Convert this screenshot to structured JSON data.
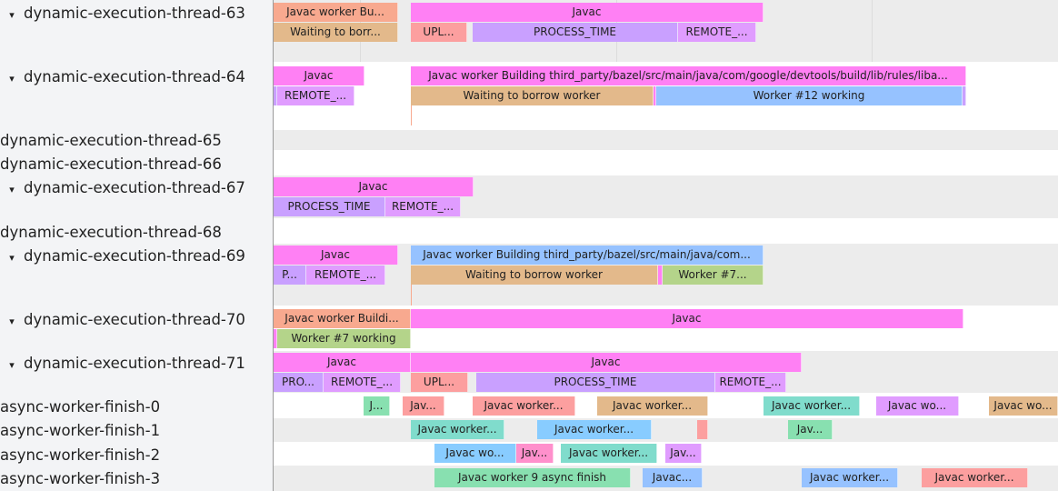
{
  "colors": {
    "magenta": "#ff80f4",
    "salmon": "#f8a98f",
    "tan": "#e3b98b",
    "pink": "#fc9f9f",
    "lavender": "#c9a0ff",
    "violet": "#e09cff",
    "blue": "#96c2ff",
    "lightblue": "#88ccff",
    "green": "#b4d48a",
    "teal": "#80dccc",
    "mint": "#88e0b0",
    "hotpink": "#ff90cc",
    "track_alt": "#ececec"
  },
  "tracks": [
    {
      "name": "dynamic-execution-thread-63",
      "expanded": true,
      "slices": [
        {
          "label": "Javac worker Bu...",
          "color": "salmon"
        },
        {
          "label": "Javac",
          "color": "magenta"
        },
        {
          "label": "Waiting to borr...",
          "color": "tan"
        },
        {
          "label": "UPL...",
          "color": "pink"
        },
        {
          "label": "PROCESS_TIME",
          "color": "lavender"
        },
        {
          "label": "REMOTE_...",
          "color": "violet"
        }
      ]
    },
    {
      "name": "dynamic-execution-thread-64",
      "expanded": true,
      "slices": [
        {
          "label": "Javac",
          "color": "magenta"
        },
        {
          "label": "Javac worker Building third_party/bazel/src/main/java/com/google/devtools/build/lib/rules/liba...",
          "color": "magenta"
        },
        {
          "label": "",
          "color": "lavender"
        },
        {
          "label": "REMOTE_...",
          "color": "violet"
        },
        {
          "label": "Waiting to borrow worker",
          "color": "tan"
        },
        {
          "label": "",
          "color": "magenta"
        },
        {
          "label": "Worker #12 working",
          "color": "blue"
        },
        {
          "label": "",
          "color": "lavender"
        }
      ]
    },
    {
      "name": "dynamic-execution-thread-65",
      "expanded": false,
      "slices": []
    },
    {
      "name": "dynamic-execution-thread-66",
      "expanded": false,
      "slices": []
    },
    {
      "name": "dynamic-execution-thread-67",
      "expanded": true,
      "slices": [
        {
          "label": "Javac",
          "color": "magenta"
        },
        {
          "label": "PROCESS_TIME",
          "color": "lavender"
        },
        {
          "label": "REMOTE_...",
          "color": "violet"
        }
      ]
    },
    {
      "name": "dynamic-execution-thread-68",
      "expanded": false,
      "slices": []
    },
    {
      "name": "dynamic-execution-thread-69",
      "expanded": true,
      "slices": [
        {
          "label": "Javac",
          "color": "magenta"
        },
        {
          "label": "Javac worker Building third_party/bazel/src/main/java/com...",
          "color": "blue"
        },
        {
          "label": "P...",
          "color": "lavender"
        },
        {
          "label": "REMOTE_...",
          "color": "violet"
        },
        {
          "label": "Waiting to borrow worker",
          "color": "tan"
        },
        {
          "label": "",
          "color": "magenta"
        },
        {
          "label": "Worker #7...",
          "color": "green"
        }
      ]
    },
    {
      "name": "dynamic-execution-thread-70",
      "expanded": true,
      "slices": [
        {
          "label": "Javac worker Buildi...",
          "color": "salmon"
        },
        {
          "label": "Javac",
          "color": "magenta"
        },
        {
          "label": "",
          "color": "magenta"
        },
        {
          "label": "Worker #7 working",
          "color": "green"
        }
      ]
    },
    {
      "name": "dynamic-execution-thread-71",
      "expanded": true,
      "slices": [
        {
          "label": "Javac",
          "color": "magenta"
        },
        {
          "label": "Javac",
          "color": "magenta"
        },
        {
          "label": "PRO...",
          "color": "lavender"
        },
        {
          "label": "REMOTE_...",
          "color": "violet"
        },
        {
          "label": "UPL...",
          "color": "pink"
        },
        {
          "label": "PROCESS_TIME",
          "color": "lavender"
        },
        {
          "label": "REMOTE_...",
          "color": "violet"
        }
      ]
    },
    {
      "name": "async-worker-finish-0",
      "expanded": false,
      "slices": [
        {
          "label": "J...",
          "color": "mint"
        },
        {
          "label": "Jav...",
          "color": "pink"
        },
        {
          "label": "Javac worker...",
          "color": "pink"
        },
        {
          "label": "Javac worker...",
          "color": "tan"
        },
        {
          "label": "Javac worker...",
          "color": "teal"
        },
        {
          "label": "Javac wo...",
          "color": "violet"
        },
        {
          "label": "Javac wo...",
          "color": "tan"
        }
      ]
    },
    {
      "name": "async-worker-finish-1",
      "expanded": false,
      "slices": [
        {
          "label": "Javac worker...",
          "color": "teal"
        },
        {
          "label": "Javac worker...",
          "color": "lightblue"
        },
        {
          "label": "",
          "color": "pink"
        },
        {
          "label": "Jav...",
          "color": "mint"
        }
      ]
    },
    {
      "name": "async-worker-finish-2",
      "expanded": false,
      "slices": [
        {
          "label": "Javac wo...",
          "color": "lightblue"
        },
        {
          "label": "Jav...",
          "color": "hotpink"
        },
        {
          "label": "Javac worker...",
          "color": "teal"
        },
        {
          "label": "Jav...",
          "color": "violet"
        }
      ]
    },
    {
      "name": "async-worker-finish-3",
      "expanded": false,
      "slices": [
        {
          "label": "Javac worker 9 async finish",
          "color": "mint"
        },
        {
          "label": "Javac...",
          "color": "blue"
        },
        {
          "label": "Javac worker...",
          "color": "blue"
        },
        {
          "label": "Javac worker...",
          "color": "pink"
        }
      ]
    }
  ],
  "icons": {
    "expanded": "triangle-down-icon"
  },
  "expander_glyph": "▾"
}
